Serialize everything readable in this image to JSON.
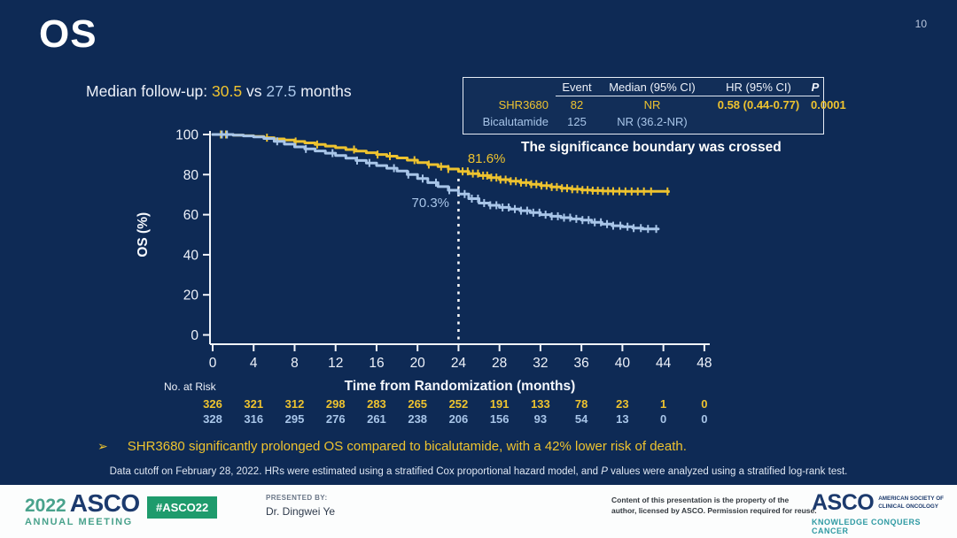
{
  "slide": {
    "page_number": "10",
    "title": "OS",
    "median_followup": {
      "prefix": "Median follow-up:",
      "shr_value": "30.5",
      "vs": "vs",
      "bica_value": "27.5",
      "suffix": "months"
    },
    "boundary_note": "The significance boundary was crossed",
    "bullet": {
      "arrow": "➢",
      "text": "SHR3680 significantly prolonged OS compared to bicalutamide, with a 42% lower risk of death."
    },
    "footnote": {
      "part1": "Data cutoff on February 28, 2022. HRs were estimated using a stratified Cox proportional hazard model, and",
      "p": "P",
      "part2": "values were analyzed using a stratified log-rank test."
    }
  },
  "stats_table": {
    "headers": [
      "Event",
      "Median (95% CI)",
      "HR (95% CI)",
      "P"
    ],
    "rows": [
      {
        "name": "SHR3680",
        "event": "82",
        "median": "NR",
        "hr": "0.58 (0.44-0.77)",
        "p": "0.0001",
        "color": "#eec32f"
      },
      {
        "name": "Bicalutamide",
        "event": "125",
        "median": "NR (36.2-NR)",
        "hr": "",
        "p": "",
        "color": "#a8c5e8"
      }
    ]
  },
  "chart_data": {
    "type": "line",
    "subtype": "kaplan-meier-step",
    "title": "",
    "xlabel": "Time from Randomization (months)",
    "ylabel": "OS (%)",
    "xlim": [
      0,
      48
    ],
    "ylim": [
      0,
      100
    ],
    "xticks": [
      0,
      4,
      8,
      12,
      16,
      20,
      24,
      28,
      32,
      36,
      40,
      44,
      48
    ],
    "yticks": [
      0,
      20,
      40,
      60,
      80,
      100
    ],
    "grid": false,
    "reference_line": {
      "x": 24,
      "style": "dashed",
      "color": "#ffffff"
    },
    "annotations": [
      {
        "text": "81.6%",
        "month": 24.9,
        "pct": 85.9,
        "anchor": "start",
        "color": "#eec32f"
      },
      {
        "text": "70.3%",
        "month": 23.1,
        "pct": 63.8,
        "anchor": "end",
        "color": "#a8c5e8"
      }
    ],
    "series": [
      {
        "name": "SHR3680",
        "color": "#eec32f",
        "points": [
          [
            0,
            100
          ],
          [
            2,
            99.7
          ],
          [
            3,
            99.4
          ],
          [
            4,
            99
          ],
          [
            5,
            98.4
          ],
          [
            6,
            97.8
          ],
          [
            7,
            97.2
          ],
          [
            8,
            96.5
          ],
          [
            9,
            95.8
          ],
          [
            10,
            95
          ],
          [
            11,
            94.2
          ],
          [
            12,
            93.4
          ],
          [
            13,
            92.5
          ],
          [
            14,
            91.7
          ],
          [
            15,
            90.9
          ],
          [
            16,
            90
          ],
          [
            17,
            89.2
          ],
          [
            18,
            88.3
          ],
          [
            19,
            87.2
          ],
          [
            20,
            86
          ],
          [
            21,
            85
          ],
          [
            22,
            84
          ],
          [
            23,
            82.8
          ],
          [
            24,
            81.6
          ],
          [
            25,
            80.5
          ],
          [
            26,
            79.5
          ],
          [
            27,
            78.5
          ],
          [
            28,
            77.5
          ],
          [
            29,
            76.7
          ],
          [
            30,
            76
          ],
          [
            31,
            75.2
          ],
          [
            32,
            74.5
          ],
          [
            33,
            73.8
          ],
          [
            34,
            73.2
          ],
          [
            35,
            72.7
          ],
          [
            36,
            72.3
          ],
          [
            37,
            72
          ],
          [
            38,
            71.8
          ],
          [
            39,
            71.7
          ],
          [
            40,
            71.6
          ],
          [
            44.5,
            71.5
          ]
        ],
        "censor_months": [
          0.8,
          1.3,
          5.3,
          8.1,
          10.2,
          13.8,
          16.1,
          17.3,
          19.7,
          21.1,
          22.3,
          23.0,
          24.4,
          24.9,
          25.4,
          25.9,
          26.4,
          26.8,
          27.2,
          27.7,
          28.1,
          28.6,
          29.1,
          29.6,
          30.1,
          30.6,
          31.1,
          31.6,
          32.1,
          32.6,
          33.1,
          33.6,
          34.1,
          34.6,
          35.1,
          35.6,
          36.1,
          36.6,
          37.1,
          37.6,
          38.1,
          38.6,
          39.1,
          39.7,
          40.3,
          40.9,
          41.5,
          42.1,
          42.8,
          44.4
        ]
      },
      {
        "name": "Bicalutamide",
        "color": "#a8c5e8",
        "points": [
          [
            0,
            100
          ],
          [
            2,
            99.7
          ],
          [
            3,
            99.3
          ],
          [
            4,
            98.8
          ],
          [
            5,
            98
          ],
          [
            6,
            96.6
          ],
          [
            7,
            95.2
          ],
          [
            8,
            93.8
          ],
          [
            9,
            92.8
          ],
          [
            10,
            91.8
          ],
          [
            11,
            90.7
          ],
          [
            12,
            89.5
          ],
          [
            13,
            88.2
          ],
          [
            14,
            87
          ],
          [
            15,
            85.8
          ],
          [
            16,
            84.5
          ],
          [
            17,
            83.2
          ],
          [
            18,
            81.8
          ],
          [
            19,
            80
          ],
          [
            20,
            78
          ],
          [
            21,
            76
          ],
          [
            22,
            74
          ],
          [
            23,
            72.2
          ],
          [
            24,
            70.3
          ],
          [
            25,
            68
          ],
          [
            26,
            65.8
          ],
          [
            27,
            64.7
          ],
          [
            28,
            63.6
          ],
          [
            29,
            62.8
          ],
          [
            30,
            62
          ],
          [
            31,
            61
          ],
          [
            32,
            60
          ],
          [
            33,
            59.2
          ],
          [
            34,
            58.5
          ],
          [
            35,
            57.9
          ],
          [
            36,
            57.3
          ],
          [
            37,
            56.2
          ],
          [
            38,
            55.3
          ],
          [
            39,
            54.5
          ],
          [
            40,
            54
          ],
          [
            41,
            53.3
          ],
          [
            42,
            52.9
          ],
          [
            43.5,
            52.9
          ]
        ],
        "censor_months": [
          0.9,
          1.4,
          6.3,
          9.1,
          11.7,
          14.1,
          15.3,
          17.7,
          19.1,
          20.5,
          21.8,
          23.1,
          24.6,
          25.3,
          25.9,
          26.5,
          27.1,
          27.7,
          28.3,
          28.9,
          29.5,
          30.1,
          30.7,
          31.3,
          31.9,
          32.5,
          33.1,
          33.7,
          34.3,
          34.9,
          35.5,
          36.1,
          36.7,
          37.3,
          37.9,
          38.5,
          39.1,
          39.8,
          40.5,
          41.1,
          41.8,
          42.5,
          43.3
        ]
      }
    ],
    "no_at_risk": {
      "label": "No. at Risk",
      "months": [
        0,
        4,
        8,
        12,
        16,
        20,
        24,
        28,
        32,
        36,
        40,
        44,
        48
      ],
      "rows": [
        {
          "name": "SHR3680",
          "color": "#eec32f",
          "values": [
            326,
            321,
            312,
            298,
            283,
            265,
            252,
            191,
            133,
            78,
            23,
            1,
            0
          ]
        },
        {
          "name": "Bicalutamide",
          "color": "#a8c5e8",
          "values": [
            328,
            316,
            295,
            276,
            261,
            238,
            206,
            156,
            93,
            54,
            13,
            0,
            0
          ]
        }
      ]
    }
  },
  "footer": {
    "meeting_logo": {
      "year": "2022",
      "org": "ASCO",
      "line2": "ANNUAL MEETING"
    },
    "hashtag": "#ASCO22",
    "presented_by_label": "PRESENTED BY:",
    "presenter": "Dr. Dingwei Ye",
    "disclaimer_line1": "Content of this presentation is the property of the",
    "disclaimer_line2": "author, licensed by ASCO. Permission required for reuse.",
    "asco_logo": {
      "name": "ASCO",
      "tagline1": "AMERICAN SOCIETY OF",
      "tagline2": "CLINICAL ONCOLOGY",
      "motto": "KNOWLEDGE CONQUERS CANCER"
    }
  }
}
